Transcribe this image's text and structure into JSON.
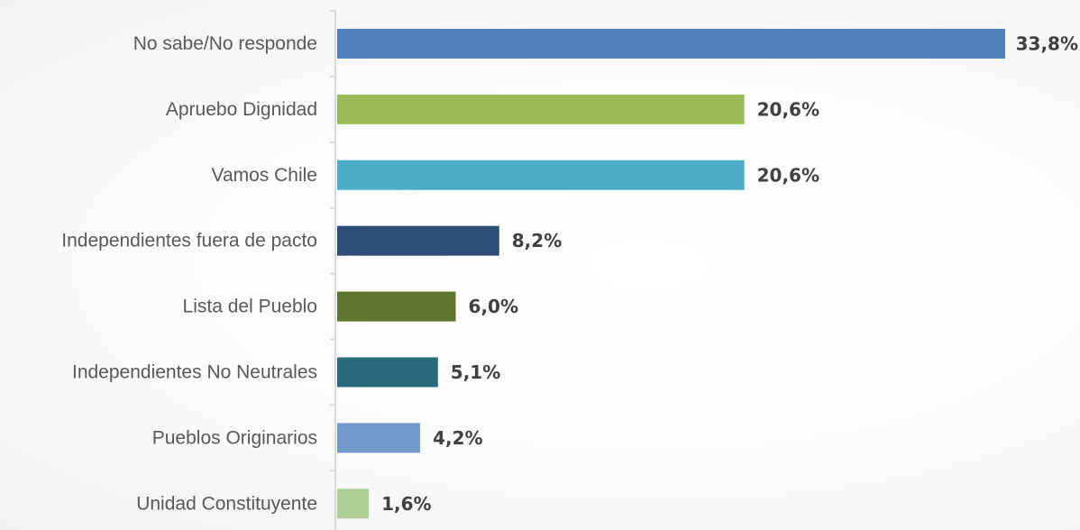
{
  "chart_data": {
    "type": "bar",
    "orientation": "horizontal",
    "categories": [
      "No sabe/No responde",
      "Apruebo Dignidad",
      "Vamos Chile",
      "Independientes fuera de pacto",
      "Lista del Pueblo",
      "Independientes No Neutrales",
      "Pueblos Originarios",
      "Unidad Constituyente"
    ],
    "values": [
      33.8,
      20.6,
      20.6,
      8.2,
      6.0,
      5.1,
      4.2,
      1.6
    ],
    "value_labels": [
      "33,8%",
      "20,6%",
      "20,6%",
      "8,2%",
      "6,0%",
      "5,1%",
      "4,2%",
      "1,6%"
    ],
    "colors": [
      "#4f81bd",
      "#9bbb59",
      "#4bacc6",
      "#2c4d75",
      "#5f7530",
      "#276a7c",
      "#729aca",
      "#afd095"
    ],
    "axis_color": "#d9d9d9",
    "xlim": [
      0,
      34
    ],
    "grid": false,
    "title": "",
    "xlabel": "",
    "ylabel": ""
  }
}
